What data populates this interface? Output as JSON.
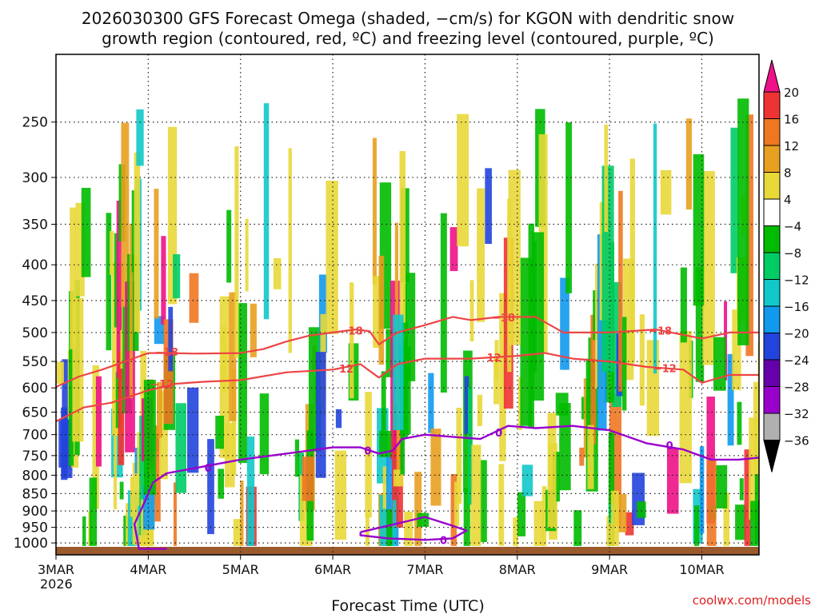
{
  "chart_data": {
    "type": "heatmap",
    "title_line1": "2026030300 GFS Forecast Omega (shaded, −cm/s) for KGON with dendritic snow",
    "title_line2": "growth region (contoured, red, ºC) and freezing level (contoured, purple, ºC)",
    "xlabel": "Forecast Time (UTC)",
    "credit": "coolwx.com/models",
    "x_start_day": 3,
    "x_end_day": 10.62,
    "x_ticks": [
      {
        "day": 3,
        "label": "3MAR",
        "sub": "2026"
      },
      {
        "day": 4,
        "label": "4MAR"
      },
      {
        "day": 5,
        "label": "5MAR"
      },
      {
        "day": 6,
        "label": "6MAR"
      },
      {
        "day": 7,
        "label": "7MAR"
      },
      {
        "day": 8,
        "label": "8MAR"
      },
      {
        "day": 9,
        "label": "9MAR"
      },
      {
        "day": 10,
        "label": "10MAR"
      }
    ],
    "y_scale": "log-pressure",
    "y_range_hpa": [
      1040,
      200
    ],
    "y_ticks": [
      250,
      300,
      350,
      400,
      450,
      500,
      550,
      600,
      650,
      700,
      750,
      800,
      850,
      900,
      950,
      1000
    ],
    "colorbar": {
      "levels": [
        "20",
        "16",
        "12",
        "8",
        "4",
        "−4",
        "−8",
        "−12",
        "−16",
        "−20",
        "−24",
        "−28",
        "−32",
        "−36"
      ],
      "colors": [
        "#ee1188",
        "#ee3333",
        "#ee7722",
        "#e8a020",
        "#e8d838",
        "#ffffff",
        "#00bb00",
        "#00cc66",
        "#11c8c8",
        "#1199ee",
        "#2244dd",
        "#6600aa",
        "#9900cc",
        "#b0b0b0",
        "#000000"
      ]
    },
    "contour_label_18": "−18",
    "contour_label_12": "−12",
    "contour_label_0": "0",
    "isotherm_minus18": [
      [
        3.0,
        598
      ],
      [
        3.25,
        578
      ],
      [
        3.5,
        565
      ],
      [
        3.75,
        550
      ],
      [
        4.0,
        535
      ],
      [
        4.25,
        535
      ],
      [
        4.5,
        536
      ],
      [
        5.0,
        535
      ],
      [
        5.25,
        528
      ],
      [
        5.5,
        515
      ],
      [
        5.75,
        505
      ],
      [
        6.0,
        500
      ],
      [
        6.25,
        495
      ],
      [
        6.4,
        498
      ],
      [
        6.5,
        520
      ],
      [
        6.7,
        500
      ],
      [
        7.0,
        488
      ],
      [
        7.3,
        475
      ],
      [
        7.5,
        480
      ],
      [
        7.8,
        475
      ],
      [
        8.2,
        475
      ],
      [
        8.5,
        500
      ],
      [
        9.0,
        500
      ],
      [
        9.5,
        495
      ],
      [
        10.0,
        510
      ],
      [
        10.3,
        500
      ],
      [
        10.62,
        500
      ]
    ],
    "isotherm_minus12": [
      [
        3.0,
        670
      ],
      [
        3.3,
        640
      ],
      [
        3.6,
        630
      ],
      [
        4.0,
        605
      ],
      [
        4.3,
        592
      ],
      [
        4.6,
        588
      ],
      [
        5.0,
        585
      ],
      [
        5.5,
        570
      ],
      [
        6.0,
        565
      ],
      [
        6.3,
        555
      ],
      [
        6.5,
        580
      ],
      [
        6.7,
        555
      ],
      [
        7.0,
        545
      ],
      [
        7.5,
        545
      ],
      [
        8.0,
        540
      ],
      [
        8.3,
        535
      ],
      [
        8.6,
        545
      ],
      [
        9.0,
        550
      ],
      [
        9.4,
        560
      ],
      [
        9.8,
        565
      ],
      [
        10.0,
        590
      ],
      [
        10.3,
        575
      ],
      [
        10.62,
        575
      ]
    ],
    "freezing_level_main": [
      [
        4.2,
        1020
      ],
      [
        3.9,
        1020
      ],
      [
        3.85,
        940
      ],
      [
        3.95,
        880
      ],
      [
        4.05,
        820
      ],
      [
        4.2,
        795
      ],
      [
        4.5,
        782
      ],
      [
        5.0,
        760
      ],
      [
        5.5,
        745
      ],
      [
        6.0,
        730
      ],
      [
        6.3,
        730
      ],
      [
        6.5,
        745
      ],
      [
        6.65,
        738
      ],
      [
        6.75,
        710
      ],
      [
        7.0,
        700
      ],
      [
        7.3,
        705
      ],
      [
        7.6,
        710
      ],
      [
        7.9,
        680
      ],
      [
        8.2,
        685
      ],
      [
        8.6,
        680
      ],
      [
        9.0,
        690
      ],
      [
        9.4,
        720
      ],
      [
        9.8,
        735
      ],
      [
        10.1,
        760
      ],
      [
        10.4,
        760
      ],
      [
        10.62,
        755
      ]
    ],
    "freezing_level_closed": [
      [
        6.3,
        965
      ],
      [
        6.6,
        945
      ],
      [
        7.0,
        918
      ],
      [
        7.3,
        945
      ],
      [
        7.45,
        960
      ],
      [
        7.3,
        985
      ],
      [
        7.0,
        990
      ],
      [
        6.6,
        985
      ],
      [
        6.3,
        975
      ],
      [
        6.3,
        965
      ]
    ]
  }
}
